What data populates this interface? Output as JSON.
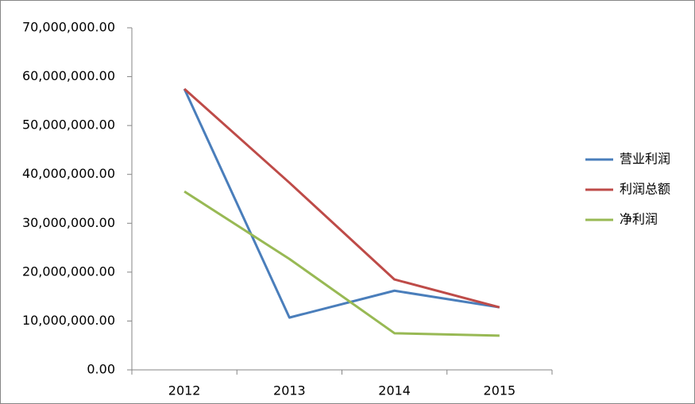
{
  "chart_data": {
    "type": "line",
    "categories": [
      "2012",
      "2013",
      "2014",
      "2015"
    ],
    "series": [
      {
        "name": "营业利润",
        "color": "#4a7ebb",
        "values": [
          57500000,
          10700000,
          16200000,
          12800000
        ]
      },
      {
        "name": "利润总额",
        "color": "#be4b48",
        "values": [
          57500000,
          38300000,
          18500000,
          12800000
        ]
      },
      {
        "name": "净利润",
        "color": "#98b954",
        "values": [
          36500000,
          22700000,
          7500000,
          7000000
        ]
      }
    ],
    "ylim": [
      0,
      70000000
    ],
    "yticks": [
      {
        "value": 0,
        "label": "0.00"
      },
      {
        "value": 10000000,
        "label": "10,000,000.00"
      },
      {
        "value": 20000000,
        "label": "20,000,000.00"
      },
      {
        "value": 30000000,
        "label": "30,000,000.00"
      },
      {
        "value": 40000000,
        "label": "40,000,000.00"
      },
      {
        "value": 50000000,
        "label": "50,000,000.00"
      },
      {
        "value": 60000000,
        "label": "60,000,000.00"
      },
      {
        "value": 70000000,
        "label": "70,000,000.00"
      }
    ],
    "grid": false,
    "legend": "right"
  }
}
